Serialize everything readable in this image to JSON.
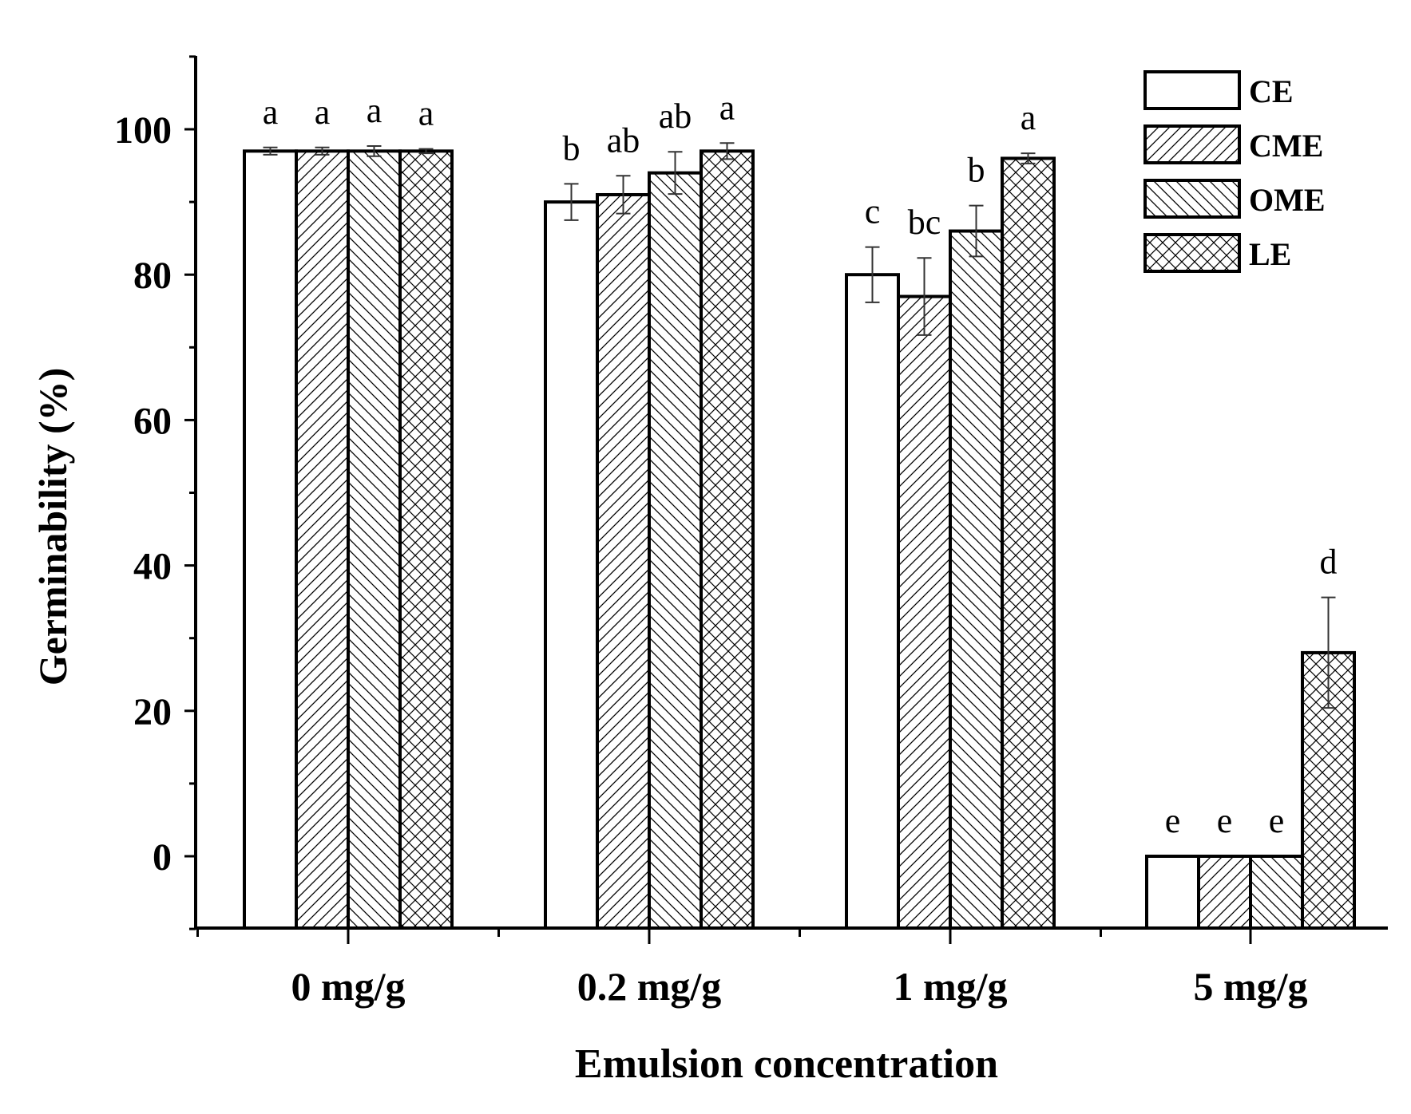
{
  "chart_data": {
    "type": "bar",
    "title": "",
    "xlabel": "Emulsion concentration",
    "ylabel": "Germinability (%)",
    "ylim": [
      -10,
      110
    ],
    "yticks": [
      0,
      20,
      40,
      60,
      80,
      100
    ],
    "categories": [
      "0 mg/g",
      "0.2 mg/g",
      "1 mg/g",
      "5 mg/g"
    ],
    "legend_position": "top-right",
    "series": [
      {
        "name": "CE",
        "pattern": "none",
        "values": [
          97,
          90,
          80,
          0
        ],
        "errors": [
          0.5,
          2.5,
          3.8,
          0
        ],
        "letters": [
          "a",
          "b",
          "c",
          "e"
        ]
      },
      {
        "name": "CME",
        "pattern": "forward",
        "values": [
          97,
          91,
          77,
          0
        ],
        "errors": [
          0.5,
          2.6,
          5.3,
          0
        ],
        "letters": [
          "a",
          "ab",
          "bc",
          "e"
        ]
      },
      {
        "name": "OME",
        "pattern": "back",
        "values": [
          97,
          94,
          86,
          0
        ],
        "errors": [
          0.7,
          2.9,
          3.5,
          0
        ],
        "letters": [
          "a",
          "ab",
          "b",
          "e"
        ]
      },
      {
        "name": "LE",
        "pattern": "cross",
        "values": [
          97,
          97,
          96,
          28
        ],
        "errors": [
          0.3,
          1.1,
          0.7,
          7.6
        ],
        "letters": [
          "a",
          "a",
          "a",
          "d"
        ]
      }
    ]
  }
}
